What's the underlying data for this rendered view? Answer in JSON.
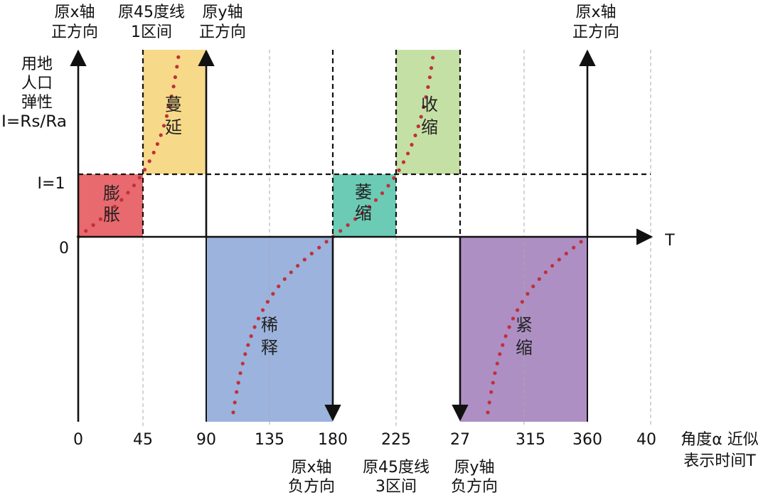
{
  "chart_data": {
    "type": "diagram",
    "y_axis_label_lines": [
      "用地",
      "人口",
      "弹性",
      "I=Rs/Ra"
    ],
    "y_tick_labels": {
      "one": "I=1",
      "zero": "0"
    },
    "x_axis_end_label": "T",
    "x_axis_title_lines": [
      "角度α 近似",
      "表示时间T"
    ],
    "x_ticks": [
      "0",
      "45",
      "90",
      "135",
      "180",
      "225",
      "27",
      "315",
      "360",
      "40"
    ],
    "top_annotations": [
      {
        "lines": [
          "原x轴",
          "正方向"
        ]
      },
      {
        "lines": [
          "原45度线",
          "1区间"
        ]
      },
      {
        "lines": [
          "原y轴",
          "正方向"
        ]
      },
      {
        "lines": [
          "原x轴",
          "正方向"
        ]
      }
    ],
    "bottom_annotations": [
      {
        "lines": [
          "原x轴",
          "负方向"
        ]
      },
      {
        "lines": [
          "原45度线",
          "3区间"
        ]
      },
      {
        "lines": [
          "原y轴",
          "负方向"
        ]
      }
    ],
    "regions": [
      {
        "lines": [
          "膨",
          "胀"
        ],
        "color": "#e8696e"
      },
      {
        "lines": [
          "蔓",
          "延"
        ],
        "color": "#f7d98a"
      },
      {
        "lines": [
          "稀",
          "释"
        ],
        "color": "#9bb3dd"
      },
      {
        "lines": [
          "萎",
          "缩"
        ],
        "color": "#6ccbb5"
      },
      {
        "lines": [
          "收",
          "缩"
        ],
        "color": "#c5e0a5"
      },
      {
        "lines": [
          "紧",
          "缩"
        ],
        "color": "#ad8fc4"
      }
    ],
    "curve_color": "#c0303a"
  }
}
